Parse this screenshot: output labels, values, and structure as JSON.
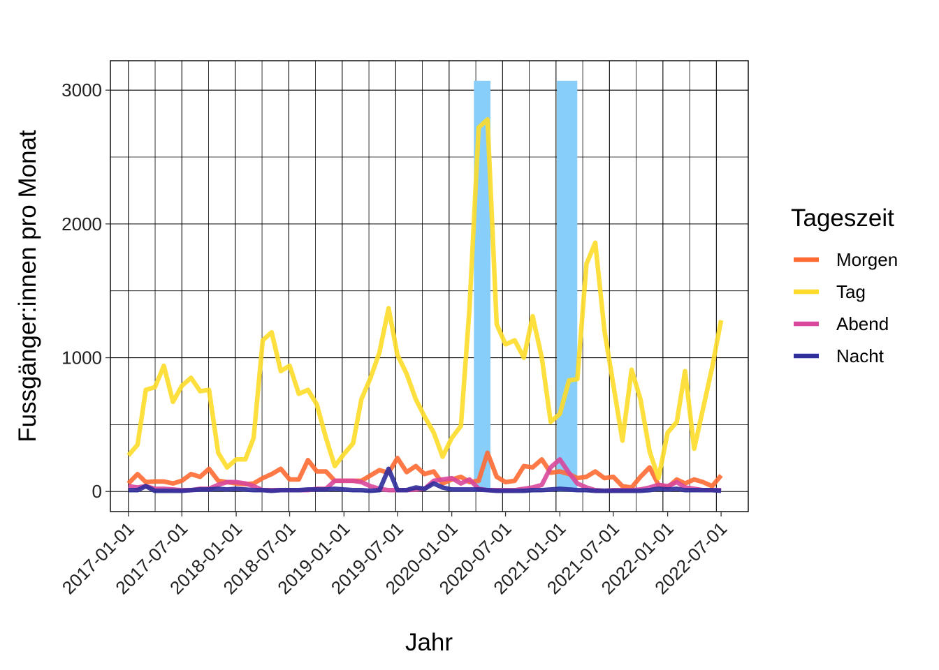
{
  "chart_data": {
    "type": "line",
    "xlabel": "Jahr",
    "ylabel": "Fussgänger:innen pro Monat",
    "x_ticks": [
      "2017-01-01",
      "2017-07-01",
      "2018-01-01",
      "2018-07-01",
      "2019-01-01",
      "2019-07-01",
      "2020-01-01",
      "2020-07-01",
      "2021-01-01",
      "2021-07-01",
      "2022-01-01",
      "2022-07-01"
    ],
    "y_ticks": [
      0,
      1000,
      2000,
      3000
    ],
    "xlim": [
      "2016-11-01",
      "2022-10-01"
    ],
    "ylim": [
      -150,
      3220
    ],
    "grid": true,
    "legend": {
      "title": "Tageszeit",
      "position": "right"
    },
    "x_months": [
      "2017-01",
      "2017-02",
      "2017-03",
      "2017-04",
      "2017-05",
      "2017-06",
      "2017-07",
      "2017-08",
      "2017-09",
      "2017-10",
      "2017-11",
      "2017-12",
      "2018-01",
      "2018-02",
      "2018-03",
      "2018-04",
      "2018-05",
      "2018-06",
      "2018-07",
      "2018-08",
      "2018-09",
      "2018-10",
      "2018-11",
      "2018-12",
      "2019-01",
      "2019-02",
      "2019-03",
      "2019-04",
      "2019-05",
      "2019-06",
      "2019-07",
      "2019-08",
      "2019-09",
      "2019-10",
      "2019-11",
      "2019-12",
      "2020-01",
      "2020-02",
      "2020-03",
      "2020-04",
      "2020-05",
      "2020-06",
      "2020-07",
      "2020-08",
      "2020-09",
      "2020-10",
      "2020-11",
      "2020-12",
      "2021-01",
      "2021-02",
      "2021-03",
      "2021-04",
      "2021-05",
      "2021-06",
      "2021-07",
      "2021-08",
      "2021-09",
      "2021-10",
      "2021-11",
      "2021-12",
      "2022-01",
      "2022-02",
      "2022-03",
      "2022-04",
      "2022-05",
      "2022-06",
      "2022-07"
    ],
    "shaded_periods": [
      {
        "start": "2020-03-16",
        "end": "2020-05-11",
        "color": "#87CEFA"
      },
      {
        "start": "2020-12-22",
        "end": "2021-03-01",
        "color": "#87CEFA"
      }
    ],
    "series": [
      {
        "name": "Morgen",
        "color": "#FF6A33",
        "values": [
          60,
          130,
          70,
          75,
          75,
          60,
          80,
          130,
          110,
          170,
          80,
          70,
          60,
          55,
          60,
          100,
          130,
          170,
          90,
          90,
          235,
          150,
          150,
          80,
          80,
          80,
          80,
          120,
          160,
          140,
          250,
          145,
          190,
          130,
          150,
          60,
          90,
          110,
          70,
          80,
          290,
          110,
          70,
          80,
          190,
          180,
          240,
          140,
          150,
          130,
          100,
          110,
          150,
          100,
          110,
          40,
          30,
          110,
          180,
          50,
          30,
          90,
          60,
          90,
          70,
          40,
          120
        ]
      },
      {
        "name": "Tag",
        "color": "#FDDB28",
        "values": [
          270,
          350,
          760,
          780,
          940,
          670,
          790,
          850,
          750,
          760,
          290,
          180,
          240,
          240,
          400,
          1130,
          1190,
          900,
          940,
          730,
          760,
          650,
          400,
          190,
          280,
          360,
          690,
          850,
          1040,
          1370,
          1020,
          880,
          690,
          560,
          440,
          260,
          400,
          490,
          1370,
          2720,
          2780,
          1250,
          1100,
          1130,
          1000,
          1310,
          1000,
          520,
          580,
          830,
          840,
          1700,
          1860,
          1200,
          800,
          380,
          910,
          690,
          300,
          100,
          440,
          520,
          900,
          320,
          620,
          930,
          1280
        ]
      },
      {
        "name": "Abend",
        "color": "#D8479B",
        "values": [
          40,
          30,
          40,
          20,
          20,
          15,
          10,
          10,
          20,
          20,
          50,
          70,
          70,
          60,
          40,
          10,
          10,
          10,
          10,
          10,
          10,
          20,
          20,
          80,
          80,
          80,
          70,
          40,
          20,
          10,
          10,
          10,
          15,
          20,
          80,
          90,
          100,
          60,
          90,
          20,
          10,
          10,
          10,
          10,
          20,
          30,
          50,
          180,
          240,
          140,
          60,
          30,
          10,
          5,
          10,
          10,
          10,
          15,
          30,
          50,
          40,
          70,
          30,
          20,
          10,
          10,
          10
        ]
      },
      {
        "name": "Nacht",
        "color": "#2E2E9C",
        "values": [
          10,
          10,
          40,
          5,
          5,
          5,
          5,
          10,
          15,
          15,
          20,
          15,
          20,
          15,
          10,
          10,
          5,
          10,
          10,
          10,
          15,
          15,
          15,
          20,
          15,
          10,
          10,
          5,
          10,
          170,
          10,
          10,
          30,
          20,
          60,
          30,
          15,
          15,
          15,
          15,
          10,
          5,
          5,
          5,
          5,
          10,
          10,
          15,
          20,
          15,
          10,
          10,
          5,
          5,
          5,
          5,
          5,
          5,
          10,
          20,
          15,
          20,
          10,
          10,
          10,
          10,
          5
        ]
      }
    ]
  }
}
